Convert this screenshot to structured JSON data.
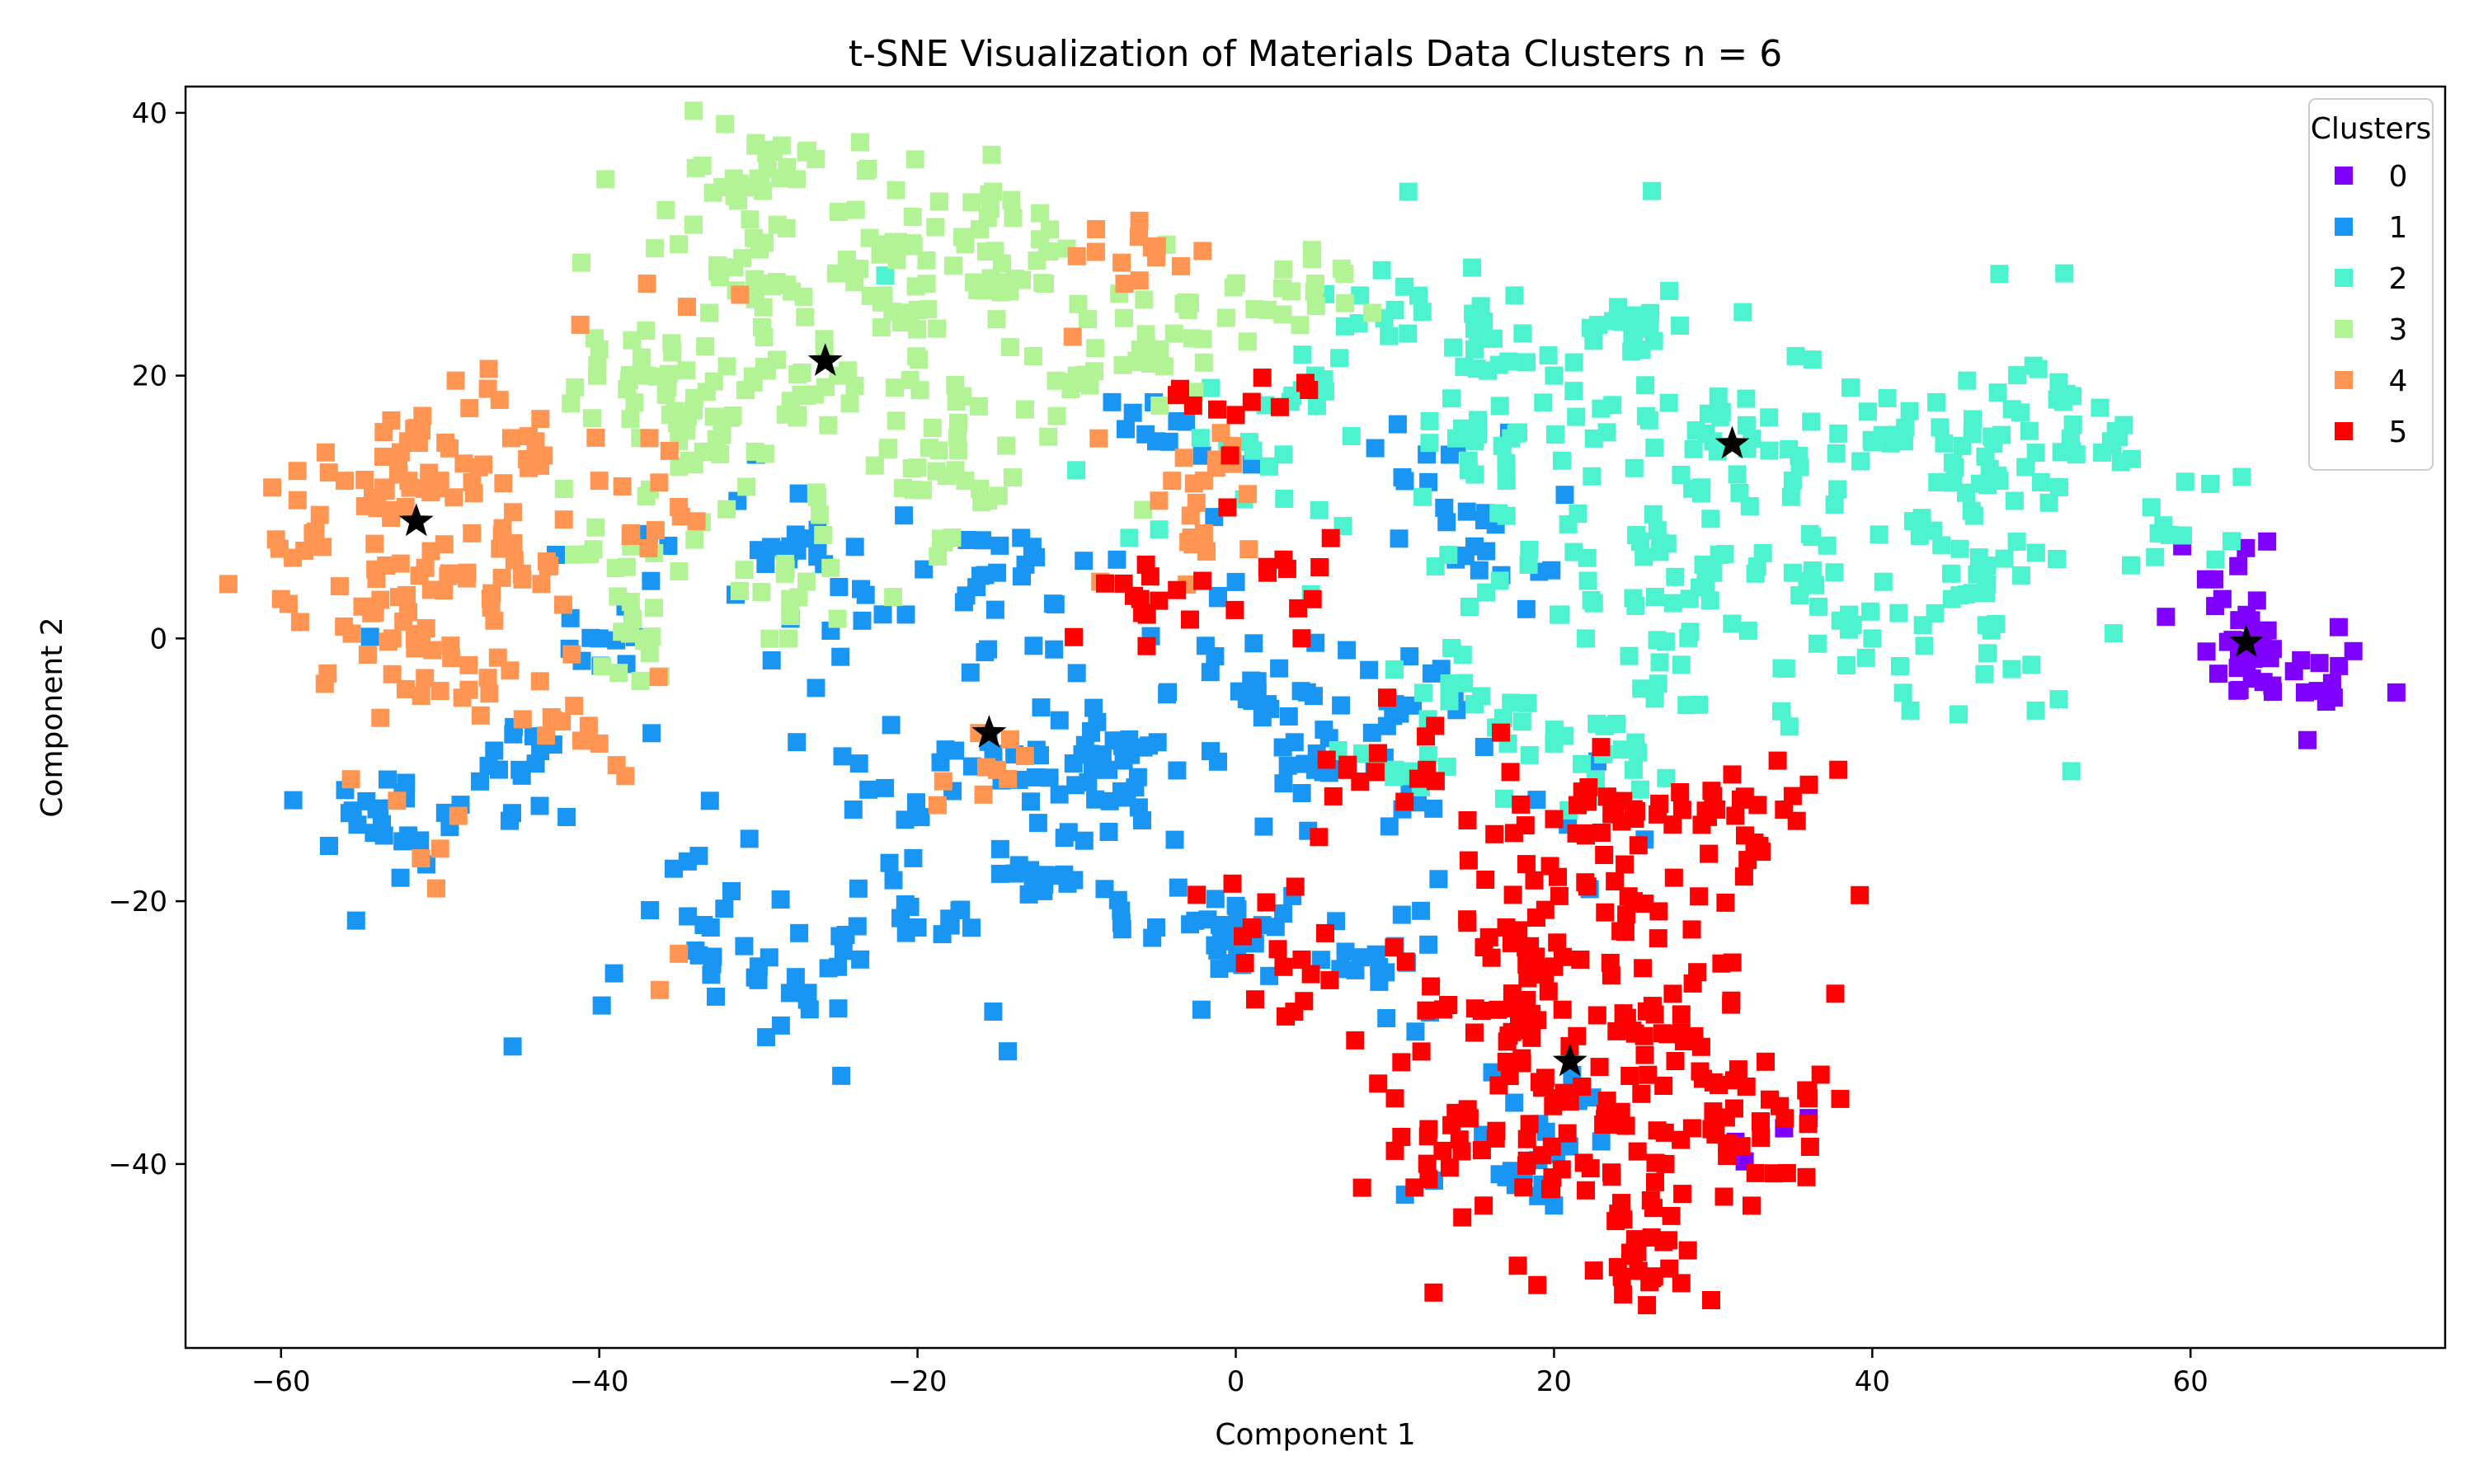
{
  "chart_data": {
    "type": "scatter",
    "title": "t-SNE Visualization of Materials Data Clusters n = 6",
    "xlabel": "Component 1",
    "ylabel": "Component 2",
    "xlim": [
      -66,
      76
    ],
    "ylim": [
      -54,
      42
    ],
    "xticks": [
      -60,
      -40,
      -20,
      0,
      20,
      40,
      60
    ],
    "yticks": [
      -40,
      -20,
      0,
      20,
      40
    ],
    "grid": false,
    "legend": {
      "title": "Clusters",
      "position": "top-right"
    },
    "series": [
      {
        "name": "0",
        "color": "#8000ff",
        "marker": "square",
        "center": [
          66,
          -2.5
        ],
        "spread": [
          2.5,
          2.2
        ],
        "count": 45,
        "anchors": [
          [
            61.5,
            4.5
          ],
          [
            62,
            3
          ],
          [
            61,
            -1
          ],
          [
            64,
            0
          ],
          [
            66.5,
            -2.5
          ],
          [
            68,
            -4
          ],
          [
            69,
            -4.5
          ],
          [
            65,
            -1.5
          ],
          [
            63,
            5.5
          ],
          [
            36,
            -36.5
          ]
        ]
      },
      {
        "name": "1",
        "color": "#1996f3",
        "marker": "square",
        "center": [
          -10,
          -10
        ],
        "spread": [
          18,
          10
        ],
        "count": 420,
        "anchors": [
          [
            -54,
            -13
          ],
          [
            -52,
            -15
          ],
          [
            -33,
            -22
          ],
          [
            -30,
            -26
          ],
          [
            -25,
            -25
          ],
          [
            -20,
            -22
          ],
          [
            -12,
            -18
          ],
          [
            -5,
            -22
          ],
          [
            0,
            -22
          ],
          [
            -8,
            -10
          ],
          [
            2,
            -5
          ],
          [
            5,
            -10
          ],
          [
            10,
            -5
          ],
          [
            12,
            14
          ],
          [
            15,
            7
          ],
          [
            -15,
            5
          ],
          [
            -5,
            15
          ],
          [
            -28,
            7
          ],
          [
            -40,
            0
          ],
          [
            -45,
            -10
          ],
          [
            20,
            -35
          ],
          [
            17,
            -41
          ],
          [
            9,
            -25
          ],
          [
            -9,
            -10
          ]
        ]
      },
      {
        "name": "2",
        "color": "#4df3ce",
        "marker": "square",
        "center": [
          32,
          10
        ],
        "spread": [
          14,
          8
        ],
        "count": 380,
        "anchors": [
          [
            5,
            20
          ],
          [
            10,
            25
          ],
          [
            15,
            22
          ],
          [
            20,
            20
          ],
          [
            25,
            23
          ],
          [
            30,
            15
          ],
          [
            35,
            12
          ],
          [
            42,
            15
          ],
          [
            48,
            12
          ],
          [
            52,
            18
          ],
          [
            55,
            15
          ],
          [
            58,
            8
          ],
          [
            45,
            3
          ],
          [
            40,
            0
          ],
          [
            30,
            5
          ],
          [
            35,
            5
          ],
          [
            28,
            -2
          ],
          [
            20,
            -8
          ],
          [
            25,
            -10
          ],
          [
            15,
            -5
          ],
          [
            10,
            -10
          ],
          [
            22,
            0
          ],
          [
            15,
            15
          ],
          [
            3,
            14
          ],
          [
            47,
            5
          ],
          [
            50,
            -2
          ]
        ]
      },
      {
        "name": "3",
        "color": "#b2f396",
        "marker": "square",
        "center": [
          -25,
          22
        ],
        "spread": [
          8,
          8
        ],
        "count": 330,
        "anchors": [
          [
            -30,
            35
          ],
          [
            -27,
            37
          ],
          [
            -22,
            30
          ],
          [
            -17,
            30
          ],
          [
            -14,
            32
          ],
          [
            -12,
            27
          ],
          [
            -35,
            30
          ],
          [
            -30,
            27
          ],
          [
            -25,
            20
          ],
          [
            -20,
            25
          ],
          [
            -40,
            22
          ],
          [
            -37,
            20
          ],
          [
            -35,
            15
          ],
          [
            -38,
            7
          ],
          [
            -20,
            13
          ],
          [
            -17,
            12
          ],
          [
            -10,
            20
          ],
          [
            -5,
            22
          ],
          [
            -3,
            25
          ],
          [
            2,
            25
          ],
          [
            5,
            27
          ],
          [
            -28,
            3
          ],
          [
            -37,
            0
          ]
        ]
      },
      {
        "name": "4",
        "color": "#ff9553",
        "marker": "square",
        "center": [
          -50,
          8
        ],
        "spread": [
          5,
          7
        ],
        "count": 200,
        "anchors": [
          [
            -60,
            3
          ],
          [
            -58,
            8
          ],
          [
            -56,
            12
          ],
          [
            -52,
            15
          ],
          [
            -50,
            12
          ],
          [
            -48,
            8
          ],
          [
            -53,
            0
          ],
          [
            -52,
            2
          ],
          [
            -50,
            -4
          ],
          [
            -47,
            -3
          ],
          [
            -44,
            15
          ],
          [
            -40,
            12
          ],
          [
            -47,
            19
          ],
          [
            -43,
            -6
          ],
          [
            -40,
            -8
          ],
          [
            -35,
            10
          ],
          [
            -37,
            27
          ],
          [
            -35,
            -24
          ],
          [
            -50,
            -16
          ],
          [
            -5,
            29
          ],
          [
            -7,
            27
          ],
          [
            -4,
            12
          ],
          [
            -2,
            12
          ],
          [
            -2,
            8
          ],
          [
            -15,
            -10
          ],
          [
            -38,
            8
          ]
        ]
      },
      {
        "name": "5",
        "color": "#ff0000",
        "marker": "square",
        "center": [
          22,
          -30
        ],
        "spread": [
          6,
          9
        ],
        "count": 340,
        "anchors": [
          [
            10,
            -35
          ],
          [
            10,
            -39
          ],
          [
            13,
            -39
          ],
          [
            17,
            -22
          ],
          [
            20,
            -25
          ],
          [
            22,
            -15
          ],
          [
            25,
            -13
          ],
          [
            30,
            -12
          ],
          [
            32,
            -15
          ],
          [
            35,
            -12
          ],
          [
            25,
            -20
          ],
          [
            28,
            -30
          ],
          [
            30,
            -36
          ],
          [
            33,
            -38
          ],
          [
            36,
            -35
          ],
          [
            22,
            -42
          ],
          [
            25,
            -47
          ],
          [
            26,
            -49
          ],
          [
            20,
            -35
          ],
          [
            15,
            -30
          ],
          [
            3,
            -25
          ],
          [
            1,
            -22
          ],
          [
            3,
            6
          ],
          [
            2,
            5
          ],
          [
            0,
            17
          ],
          [
            1,
            18
          ],
          [
            7,
            -10
          ],
          [
            -6,
            3
          ],
          [
            12,
            -10
          ],
          [
            27,
            -40
          ]
        ]
      }
    ],
    "centroids": {
      "marker": "star",
      "color": "#000000",
      "points": [
        [
          63.5,
          -0.3
        ],
        [
          -15.5,
          -7.2
        ],
        [
          31.2,
          14.8
        ],
        [
          -25.8,
          21.1
        ],
        [
          -51.5,
          8.9
        ],
        [
          21,
          -32.2
        ]
      ]
    }
  }
}
